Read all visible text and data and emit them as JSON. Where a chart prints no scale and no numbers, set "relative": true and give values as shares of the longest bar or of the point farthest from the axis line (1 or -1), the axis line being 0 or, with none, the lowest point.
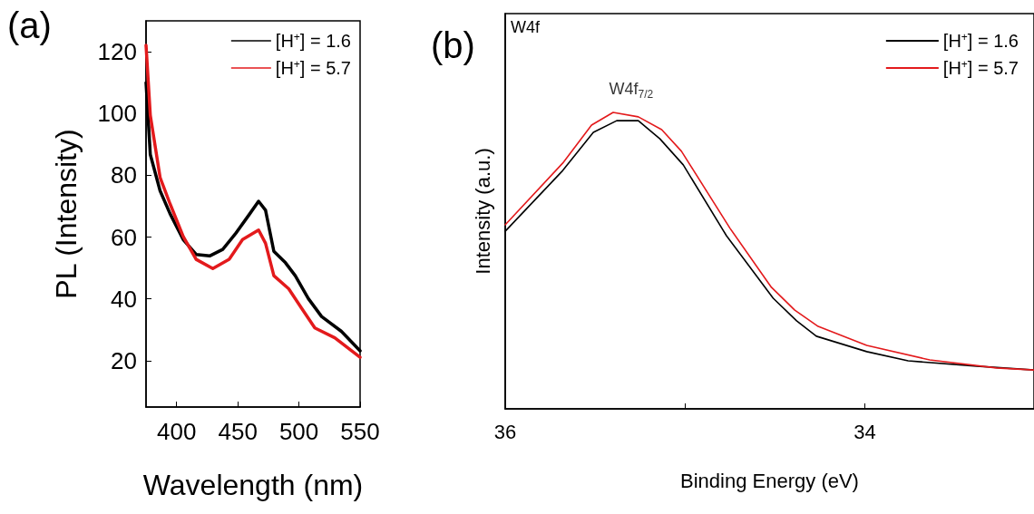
{
  "chart_data": [
    {
      "type": "line",
      "title": "(a)",
      "xlabel": "Wavelength (nm)",
      "ylabel": "PL (Intensity)",
      "xlim": [
        375,
        550
      ],
      "xticks": [
        400,
        450,
        500,
        550
      ],
      "ylim": [
        5,
        130
      ],
      "yticks": [
        20,
        40,
        60,
        80,
        100,
        120
      ],
      "grid": false,
      "legend": "top right",
      "marker": "none",
      "line_style": "solid",
      "series": [
        {
          "name": "[H$^{+}$] = 1.6",
          "color": "#000000",
          "x": [
            375,
            378.5,
            386.5,
            394.6,
            405.4,
            416,
            427,
            437.7,
            448.5,
            459,
            467,
            472.7,
            479.5,
            489,
            497,
            507.7,
            518.5,
            534.7,
            550
          ],
          "values": [
            110,
            86.7,
            75,
            67.6,
            59.2,
            54.4,
            53.9,
            56,
            61.3,
            67.1,
            71.6,
            68.7,
            55.4,
            51.7,
            47.5,
            40.1,
            34.3,
            29.5,
            23.2
          ]
        },
        {
          "name": "[H$^{+}$] = 5.7",
          "color": "#e31a1c",
          "x": [
            375,
            378.5,
            386.5,
            394.6,
            405.4,
            416,
            429.6,
            443,
            453.9,
            467,
            472.7,
            479.5,
            491.6,
            502.3,
            513,
            529.3,
            550
          ],
          "values": [
            122.1,
            99.4,
            79.3,
            70.8,
            60.2,
            52.8,
            49.8,
            52.8,
            59.2,
            62.3,
            58,
            47.5,
            43.3,
            36.9,
            30.6,
            27.4,
            21.1
          ]
        }
      ]
    },
    {
      "type": "line",
      "title": "(b)",
      "xlabel": "Binding Energy (eV)",
      "ylabel": "Intensity (a.u.)",
      "relative": true,
      "xlim": [
        36,
        33.06
      ],
      "xticks": [
        36,
        {
          "value": 35,
          "label": null
        },
        34
      ],
      "grid": false,
      "legend": "top right",
      "marker": "none",
      "line_style": "solid",
      "annotations": [
        "W4f",
        {
          "text": "W4f$_{7/2}$",
          "x": 35.3,
          "y": 1.0
        }
      ],
      "series": [
        {
          "name": "[H$^{+}$] = 1.6",
          "color": "#000000",
          "x": [
            36,
            35.68,
            35.51,
            35.38,
            35.26,
            35.14,
            35.01,
            34.77,
            34.51,
            34.38,
            34.27,
            33.99,
            33.76,
            33.38,
            33.06
          ],
          "values": [
            0.599,
            0.804,
            0.933,
            0.972,
            0.972,
            0.911,
            0.823,
            0.584,
            0.373,
            0.297,
            0.245,
            0.193,
            0.162,
            0.144,
            0.131
          ]
        },
        {
          "name": "[H$^{+}$] = 5.7",
          "color": "#e31a1c",
          "x": [
            36,
            35.68,
            35.52,
            35.4,
            35.26,
            35.13,
            35.02,
            34.75,
            34.52,
            34.39,
            34.26,
            33.99,
            33.64,
            33.27,
            33.06
          ],
          "values": [
            0.621,
            0.829,
            0.957,
            1.0,
            0.985,
            0.942,
            0.869,
            0.609,
            0.41,
            0.333,
            0.278,
            0.214,
            0.165,
            0.138,
            0.131
          ]
        }
      ]
    }
  ]
}
